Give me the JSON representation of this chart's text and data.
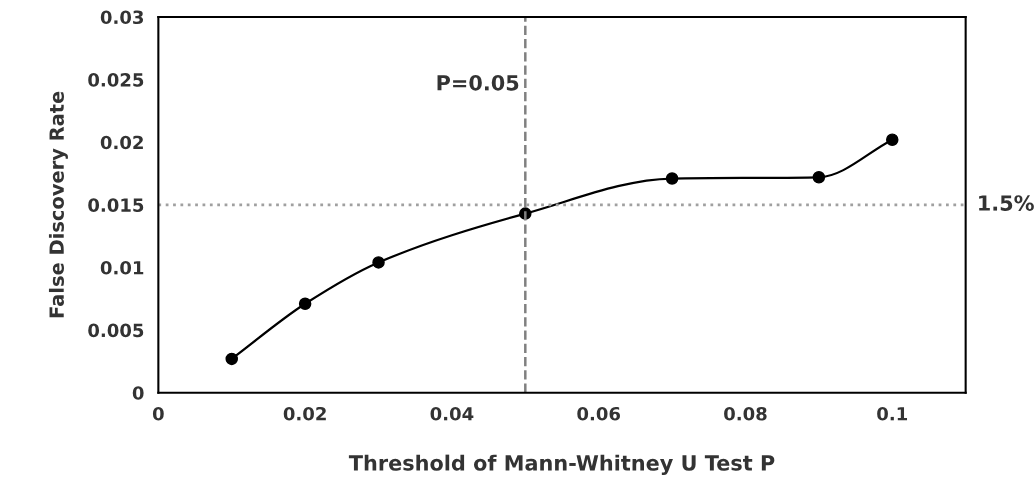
{
  "chart_data": {
    "type": "line",
    "xlabel": "Threshold of Mann-Whitney U Test P",
    "ylabel": "False Discovery Rate",
    "x": [
      0.01,
      0.02,
      0.03,
      0.05,
      0.07,
      0.09,
      0.1
    ],
    "series": [
      {
        "color": "#000000",
        "values": [
          0.0027,
          0.0071,
          0.0104,
          0.0143,
          0.0171,
          0.0172,
          0.0202
        ]
      }
    ],
    "xlim": [
      0,
      0.11
    ],
    "xticks": [
      0,
      0.02,
      0.04,
      0.06,
      0.08,
      0.1
    ],
    "ylim": [
      0,
      0.03
    ],
    "yticks": [
      0,
      0.005,
      0.01,
      0.015,
      0.02,
      0.025,
      0.03
    ],
    "ref_lines": [
      {
        "axis": "x",
        "value": 0.05,
        "label": "P=0.05",
        "color": "#808080",
        "line_style": "dashed"
      },
      {
        "axis": "y",
        "value": 0.015,
        "label": "1.5%",
        "color": "#a0a0a0",
        "line_style": "dotted"
      }
    ],
    "marker": "circle",
    "grid": false,
    "legend": false
  }
}
